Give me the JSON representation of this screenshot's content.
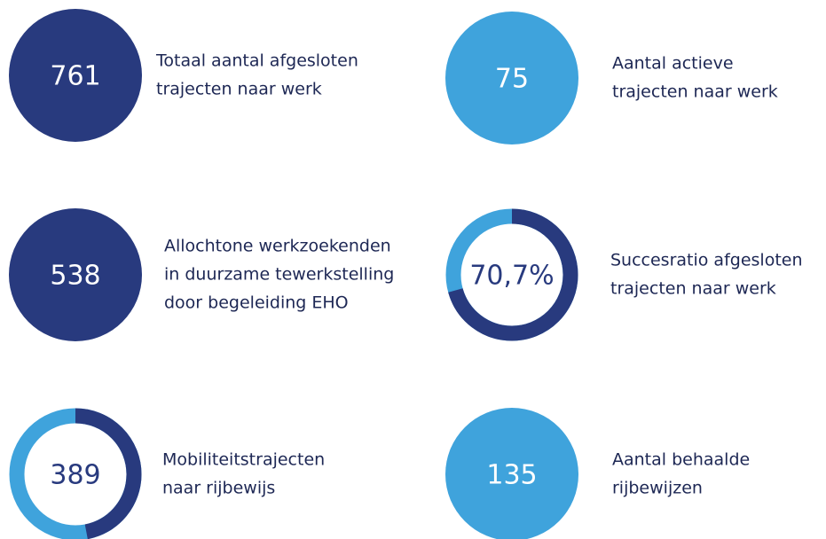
{
  "items": [
    {
      "value": 761,
      "label": [
        "Totaal aantal afgesloten",
        "trajecten naar werk"
      ],
      "style": "filled",
      "color": "#283a7e"
    },
    {
      "value": 75,
      "label": [
        "Aantal actieve",
        "trajecten naar werk"
      ],
      "style": "filled",
      "color": "#3fa3dc"
    },
    {
      "value": 538,
      "label": [
        "Allochtone werkzoekenden",
        "in duurzame tewerkstelling",
        "door begeleiding EHO"
      ],
      "style": "filled",
      "color": "#283a7e"
    },
    {
      "value": 70.7,
      "value_label": "70,7%",
      "ring_share": 70.7,
      "label": [
        "Succesratio afgesloten",
        "trajecten naar werk"
      ],
      "style": "ring",
      "color": "#283a7e",
      "ring_color": "#3fa3dc"
    },
    {
      "value": 389,
      "ring_share": 47,
      "label": [
        "Mobiliteitstrajecten",
        "naar rijbewijs"
      ],
      "style": "ring",
      "color": "#283a7e",
      "ring_color": "#3fa3dc"
    },
    {
      "value": 135,
      "label": [
        "Aantal behaalde",
        "rijbewijzen"
      ],
      "style": "filled",
      "color": "#3fa3dc"
    }
  ]
}
